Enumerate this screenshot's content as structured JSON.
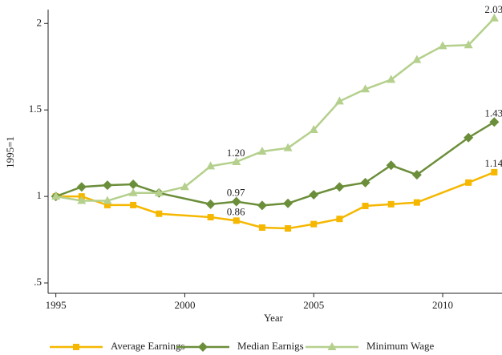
{
  "chart_data": {
    "type": "line",
    "x_label": "Year",
    "y_label": "1995=1",
    "xlim": [
      1994.7,
      2012.3
    ],
    "ylim": [
      0.44,
      2.08
    ],
    "xticks": [
      1995,
      2000,
      2005,
      2010
    ],
    "yticks": [
      {
        "value": 0.5,
        "label": ".5"
      },
      1,
      1.5,
      2
    ],
    "series": [
      {
        "name": "Average Earnings",
        "color": "#f5b700",
        "marker": "square",
        "x": [
          1995,
          1996,
          1997,
          1998,
          1999,
          2001,
          2002,
          2003,
          2004,
          2005,
          2006,
          2007,
          2008,
          2009,
          2011,
          2012
        ],
        "values": [
          1.0,
          1.0,
          0.95,
          0.95,
          0.9,
          0.88,
          0.86,
          0.82,
          0.815,
          0.84,
          0.87,
          0.945,
          0.955,
          0.965,
          1.08,
          1.14
        ]
      },
      {
        "name": "Median Earnigs",
        "color": "#6b8e3a",
        "marker": "diamond",
        "x": [
          1995,
          1996,
          1997,
          1998,
          1999,
          2001,
          2002,
          2003,
          2004,
          2005,
          2006,
          2007,
          2008,
          2009,
          2011,
          2012
        ],
        "values": [
          1.0,
          1.055,
          1.065,
          1.07,
          1.02,
          0.955,
          0.97,
          0.948,
          0.96,
          1.01,
          1.055,
          1.08,
          1.18,
          1.125,
          1.34,
          1.43
        ]
      },
      {
        "name": "Minimum Wage",
        "color": "#b5d08d",
        "marker": "triangle",
        "x": [
          1995,
          1996,
          1997,
          1998,
          1999,
          2000,
          2001,
          2002,
          2003,
          2004,
          2005,
          2006,
          2007,
          2008,
          2009,
          2010,
          2011,
          2012
        ],
        "values": [
          1.0,
          0.975,
          0.975,
          1.02,
          1.02,
          1.055,
          1.175,
          1.2,
          1.26,
          1.28,
          1.385,
          1.55,
          1.62,
          1.675,
          1.79,
          1.87,
          1.875,
          2.03
        ]
      }
    ],
    "annotations": [
      {
        "text": "2.03",
        "x": 2012,
        "y": 2.03
      },
      {
        "text": "1.43",
        "x": 2012,
        "y": 1.43
      },
      {
        "text": "1.14",
        "x": 2012,
        "y": 1.14
      },
      {
        "text": "1.20",
        "x": 2002,
        "y": 1.2
      },
      {
        "text": "0.97",
        "x": 2002,
        "y": 0.97
      },
      {
        "text": "0.86",
        "x": 2002,
        "y": 0.86
      }
    ]
  }
}
